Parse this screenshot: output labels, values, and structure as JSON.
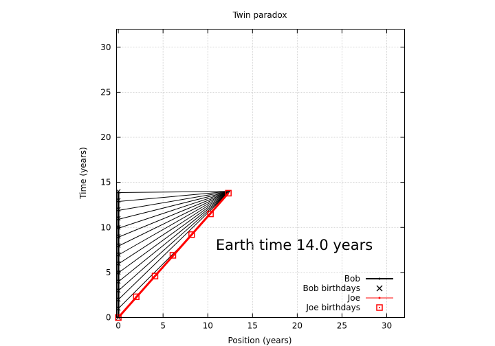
{
  "chart_data": {
    "type": "line",
    "title": "Twin paradox",
    "xlabel": "Position (years)",
    "ylabel": "Time (years)",
    "xlim": [
      -0.2,
      32
    ],
    "ylim": [
      0,
      32
    ],
    "xticks": [
      0,
      5,
      10,
      15,
      20,
      25,
      30
    ],
    "yticks": [
      0,
      5,
      10,
      15,
      20,
      25,
      30
    ],
    "grid": true,
    "legend_position": "bottom-right",
    "annotation": "Earth time 14.0 years",
    "shaded_region": {
      "pattern": "diagonal-hatch",
      "color": "#000000",
      "x_range": [
        0,
        12.3
      ],
      "y_range": [
        0,
        14
      ],
      "description_free": true
    },
    "series": [
      {
        "name": "Bob",
        "color": "#000000",
        "style": "line",
        "x": [
          0,
          0
        ],
        "y": [
          0,
          14
        ]
      },
      {
        "name": "Bob birthdays",
        "color": "#000000",
        "style": "marker-x",
        "x": [
          0,
          0,
          0,
          0,
          0,
          0,
          0,
          0,
          0,
          0,
          0,
          0,
          0,
          0,
          0
        ],
        "y": [
          0,
          1,
          2,
          3,
          4,
          5,
          6,
          7,
          8,
          9,
          10,
          11,
          12,
          13,
          14
        ]
      },
      {
        "name": "Joe",
        "color": "#ff0000",
        "style": "line",
        "x": [
          0,
          12.3
        ],
        "y": [
          0,
          13.8
        ]
      },
      {
        "name": "Joe birthdays",
        "color": "#ff0000",
        "style": "marker-square",
        "x": [
          0,
          2.0,
          4.1,
          6.1,
          8.2,
          10.3,
          12.3
        ],
        "y": [
          0,
          2.3,
          4.6,
          6.9,
          9.2,
          11.5,
          13.8
        ]
      }
    ]
  }
}
